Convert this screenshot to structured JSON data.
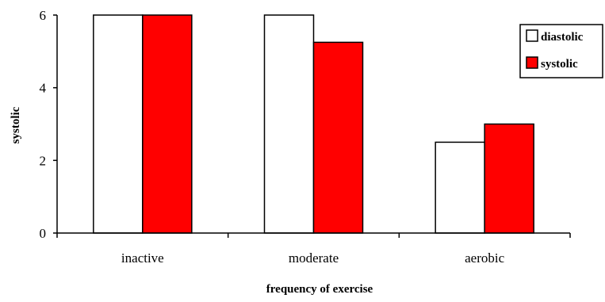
{
  "chart_data": {
    "type": "bar",
    "title": "",
    "xlabel": "frequency of exercise",
    "ylabel": "systolic",
    "categories": [
      "inactive",
      "moderate",
      "aerobic"
    ],
    "series": [
      {
        "name": "diastolic",
        "values": [
          6,
          6,
          2.5
        ],
        "color": "#ffffff"
      },
      {
        "name": "systolic",
        "values": [
          6,
          5.25,
          3
        ],
        "color": "#ff0000"
      }
    ],
    "ylim": [
      0,
      6
    ],
    "yticks": [
      0,
      2,
      4,
      6
    ],
    "grid": false,
    "legend_position": "top-right"
  }
}
